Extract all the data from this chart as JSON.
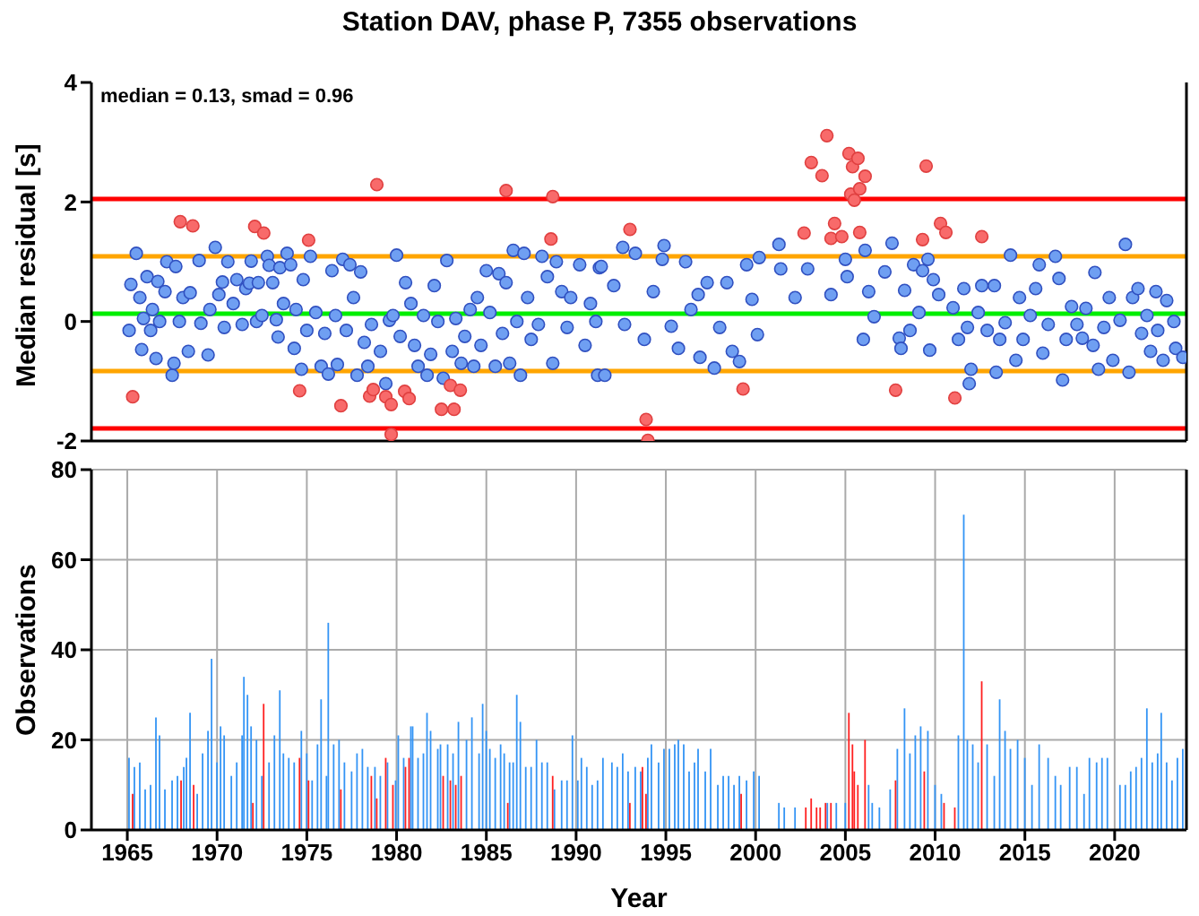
{
  "chart_data": [
    {
      "type": "scatter",
      "title": "Station DAV, phase P, 7355 observations",
      "ylabel": "Median residual [s]",
      "annotations": [
        "median = 0.13, smad = 0.96"
      ],
      "xlim": [
        1963,
        2024
      ],
      "xticks": [
        1965,
        1970,
        1975,
        1980,
        1985,
        1990,
        1995,
        2000,
        2005,
        2010,
        2015,
        2020
      ],
      "ylim": [
        -2,
        4
      ],
      "yticks": [
        -2,
        0,
        2,
        4
      ],
      "tick_labels": "y",
      "grid": "x",
      "marker": "circle",
      "ref_lines": [
        {
          "axis": "y",
          "value": 2.05,
          "color": "#ff0000"
        },
        {
          "axis": "y",
          "value": 1.09,
          "color": "#ffa500"
        },
        {
          "axis": "y",
          "value": 0.13,
          "color": "#00ee00"
        },
        {
          "axis": "y",
          "value": -0.83,
          "color": "#ffa500"
        },
        {
          "axis": "y",
          "value": -1.79,
          "color": "#ff0000"
        }
      ],
      "series": [
        {
          "color": "#6f9ff2",
          "x": [
            1965.1,
            1965.2,
            1965.5,
            1965.7,
            1965.8,
            1965.9,
            1966.1,
            1966.3,
            1966.4,
            1966.6,
            1966.7,
            1966.8,
            1967.1,
            1967.2,
            1967.5,
            1967.6,
            1967.7,
            1967.9,
            1968.1,
            1968.4,
            1968.5,
            1969.0,
            1969.1,
            1969.5,
            1969.6,
            1969.9,
            1970.1,
            1970.3,
            1970.4,
            1970.6,
            1970.9,
            1971.1,
            1971.4,
            1971.6,
            1971.8,
            1971.9,
            1972.2,
            1972.3,
            1972.5,
            1972.8,
            1972.9,
            1973.1,
            1973.3,
            1973.4,
            1973.5,
            1973.7,
            1973.9,
            1974.1,
            1974.3,
            1974.4,
            1974.7,
            1974.8,
            1975.0,
            1975.2,
            1975.5,
            1975.8,
            1976.0,
            1976.2,
            1976.4,
            1976.6,
            1976.7,
            1977.0,
            1977.2,
            1977.4,
            1977.6,
            1977.8,
            1978.0,
            1978.2,
            1978.4,
            1978.6,
            1979.1,
            1979.4,
            1979.6,
            1979.8,
            1980.0,
            1980.2,
            1980.5,
            1980.8,
            1981.0,
            1981.2,
            1981.5,
            1981.7,
            1981.9,
            1982.1,
            1982.3,
            1982.6,
            1982.8,
            1983.1,
            1983.3,
            1983.6,
            1983.8,
            1984.1,
            1984.3,
            1984.5,
            1984.7,
            1985.0,
            1985.2,
            1985.5,
            1985.7,
            1985.9,
            1986.1,
            1986.3,
            1986.5,
            1986.7,
            1986.9,
            1987.1,
            1987.3,
            1987.5,
            1987.9,
            1988.1,
            1988.4,
            1988.7,
            1988.9,
            1989.2,
            1989.5,
            1989.7,
            1990.2,
            1990.5,
            1990.8,
            1991.1,
            1991.2,
            1991.3,
            1991.4,
            1991.6,
            1992.1,
            1992.6,
            1992.7,
            1993.3,
            1993.8,
            1994.3,
            1994.8,
            1994.9,
            1995.3,
            1995.7,
            1996.1,
            1996.4,
            1996.8,
            1996.9,
            1997.3,
            1997.7,
            1998.0,
            1998.4,
            1998.7,
            1999.1,
            1999.5,
            1999.8,
            2000.1,
            2000.2,
            2001.3,
            2001.4,
            2002.2,
            2002.9,
            2004.2,
            2005.0,
            2005.1,
            2006.0,
            2006.1,
            2006.3,
            2006.6,
            2007.2,
            2007.6,
            2008.0,
            2008.1,
            2008.3,
            2008.6,
            2008.8,
            2009.1,
            2009.3,
            2009.6,
            2009.7,
            2009.9,
            2010.2,
            2011.0,
            2011.3,
            2011.6,
            2011.8,
            2011.9,
            2012.0,
            2012.4,
            2012.6,
            2012.9,
            2013.3,
            2013.4,
            2013.6,
            2013.9,
            2014.2,
            2014.5,
            2014.7,
            2014.9,
            2015.3,
            2015.6,
            2015.8,
            2016.0,
            2016.3,
            2016.7,
            2016.9,
            2017.1,
            2017.3,
            2017.6,
            2017.9,
            2018.2,
            2018.4,
            2018.8,
            2018.9,
            2019.1,
            2019.4,
            2019.7,
            2019.9,
            2020.3,
            2020.6,
            2020.8,
            2021.0,
            2021.3,
            2021.5,
            2021.8,
            2022.0,
            2022.3,
            2022.4,
            2022.7,
            2022.9,
            2023.3,
            2023.4,
            2023.8
          ],
          "values": [
            -0.15,
            0.62,
            1.14,
            0.4,
            -0.47,
            0.05,
            0.75,
            -0.15,
            0.2,
            -0.62,
            0.67,
            0.0,
            0.5,
            1.0,
            -0.9,
            -0.7,
            0.92,
            0.0,
            0.4,
            -0.5,
            0.48,
            1.02,
            -0.03,
            -0.56,
            0.2,
            1.24,
            0.45,
            0.66,
            -0.1,
            1.0,
            0.3,
            0.7,
            -0.05,
            0.55,
            0.64,
            1.01,
            0.0,
            0.65,
            0.1,
            1.09,
            0.94,
            0.65,
            0.03,
            -0.26,
            0.9,
            0.3,
            1.14,
            0.95,
            -0.45,
            0.2,
            -0.8,
            0.7,
            -0.15,
            1.09,
            0.15,
            -0.75,
            -0.2,
            -0.88,
            0.85,
            0.1,
            -0.72,
            1.04,
            -0.15,
            0.95,
            0.4,
            -0.9,
            0.83,
            -0.35,
            -0.75,
            -0.05,
            -0.5,
            -1.04,
            0.02,
            0.1,
            1.11,
            -0.25,
            0.65,
            0.3,
            -0.4,
            -0.75,
            0.1,
            -0.9,
            -0.55,
            0.6,
            0.0,
            -0.95,
            1.02,
            -0.5,
            0.05,
            -0.7,
            -0.25,
            0.2,
            -0.75,
            0.4,
            -0.4,
            0.85,
            0.15,
            -0.75,
            0.8,
            -0.2,
            0.65,
            -0.7,
            1.19,
            0.0,
            -0.9,
            1.14,
            0.4,
            -0.3,
            -0.05,
            1.09,
            0.75,
            -0.7,
            1.0,
            0.5,
            -0.1,
            0.4,
            0.95,
            -0.4,
            0.3,
            0.0,
            -0.9,
            0.9,
            0.92,
            -0.9,
            0.6,
            1.24,
            -0.05,
            1.14,
            -0.3,
            0.5,
            1.04,
            1.27,
            -0.08,
            -0.45,
            1.0,
            0.2,
            0.45,
            -0.6,
            0.65,
            -0.78,
            -0.1,
            0.65,
            -0.5,
            -0.67,
            0.95,
            0.37,
            -0.22,
            1.07,
            1.29,
            0.88,
            0.4,
            0.88,
            0.45,
            1.04,
            0.75,
            -0.3,
            1.19,
            0.5,
            0.08,
            0.83,
            1.31,
            -0.28,
            -0.45,
            0.52,
            -0.15,
            0.95,
            0.15,
            0.85,
            1.04,
            -0.48,
            0.7,
            0.45,
            0.23,
            -0.3,
            0.55,
            -0.1,
            -1.04,
            -0.8,
            0.15,
            0.6,
            -0.15,
            0.6,
            -0.85,
            -0.3,
            -0.02,
            1.11,
            -0.65,
            0.4,
            -0.3,
            0.1,
            0.55,
            0.95,
            -0.53,
            -0.05,
            1.09,
            0.72,
            -0.98,
            -0.3,
            0.25,
            -0.05,
            -0.28,
            0.22,
            -0.4,
            0.82,
            -0.8,
            -0.1,
            0.4,
            -0.65,
            0.02,
            1.29,
            -0.85,
            0.4,
            0.55,
            -0.2,
            0.1,
            -0.5,
            0.5,
            -0.15,
            -0.65,
            0.35,
            0.0,
            -0.45,
            -0.6
          ]
        },
        {
          "color": "#f86a6a",
          "x": [
            1965.3,
            1967.95,
            1968.65,
            1972.1,
            1972.6,
            1974.6,
            1975.1,
            1976.9,
            1978.5,
            1978.7,
            1978.9,
            1979.4,
            1979.7,
            1979.7,
            1980.45,
            1980.7,
            1982.5,
            1983.0,
            1983.2,
            1983.55,
            1986.1,
            1988.6,
            1988.7,
            1993.0,
            1993.9,
            1994.0,
            1999.3,
            2002.7,
            2003.1,
            2003.7,
            2003.97,
            2004.2,
            2004.4,
            2004.8,
            2005.2,
            2005.3,
            2005.4,
            2005.5,
            2005.7,
            2005.8,
            2005.8,
            2006.1,
            2007.8,
            2009.3,
            2009.5,
            2010.3,
            2010.6,
            2011.1,
            2012.6
          ],
          "values": [
            -1.26,
            1.67,
            1.6,
            1.59,
            1.48,
            -1.16,
            1.36,
            -1.41,
            -1.25,
            -1.14,
            2.29,
            -1.26,
            -1.39,
            -1.89,
            -1.17,
            -1.29,
            -1.47,
            -1.07,
            -1.47,
            -1.15,
            2.19,
            1.38,
            2.09,
            1.54,
            -1.64,
            -1.99,
            -1.13,
            1.48,
            2.66,
            2.44,
            3.11,
            1.39,
            1.64,
            1.42,
            2.81,
            2.13,
            2.59,
            2.03,
            2.73,
            2.22,
            1.49,
            2.43,
            -1.15,
            1.37,
            2.6,
            1.64,
            1.49,
            -1.28,
            1.42
          ]
        }
      ]
    },
    {
      "type": "bar",
      "xlabel": "Year",
      "ylabel": "Observations",
      "xlim": [
        1963,
        2024
      ],
      "xticks": [
        1965,
        1970,
        1975,
        1980,
        1985,
        1990,
        1995,
        2000,
        2005,
        2010,
        2015,
        2020
      ],
      "ylim": [
        0,
        80
      ],
      "yticks": [
        0,
        20,
        40,
        60,
        80
      ],
      "grid": true,
      "series": [
        {
          "color": "#3394f5",
          "x": [
            1965.1,
            1965.4,
            1965.7,
            1966.0,
            1966.3,
            1966.6,
            1966.8,
            1967.1,
            1967.5,
            1967.8,
            1968.15,
            1968.3,
            1968.5,
            1968.9,
            1969.2,
            1969.5,
            1969.7,
            1970.0,
            1970.2,
            1970.4,
            1970.8,
            1971.1,
            1971.4,
            1971.5,
            1971.7,
            1971.9,
            1972.2,
            1972.5,
            1972.9,
            1973.2,
            1973.5,
            1973.7,
            1974.0,
            1974.3,
            1974.7,
            1975.0,
            1975.3,
            1975.6,
            1975.8,
            1976.1,
            1976.2,
            1976.5,
            1976.8,
            1977.1,
            1977.5,
            1977.8,
            1978.1,
            1978.4,
            1978.8,
            1979.1,
            1979.5,
            1979.95,
            1980.1,
            1980.4,
            1980.8,
            1980.9,
            1981.2,
            1981.5,
            1981.7,
            1981.9,
            1982.3,
            1982.45,
            1982.85,
            1983.15,
            1983.45,
            1983.9,
            1984.2,
            1984.6,
            1984.8,
            1985.0,
            1985.2,
            1985.5,
            1985.8,
            1986.0,
            1986.3,
            1986.5,
            1986.7,
            1986.9,
            1987.2,
            1987.5,
            1987.8,
            1988.1,
            1988.4,
            1988.8,
            1989.2,
            1989.5,
            1989.8,
            1990.1,
            1990.3,
            1990.6,
            1990.9,
            1991.2,
            1991.5,
            1992.0,
            1992.3,
            1992.6,
            1992.9,
            1993.3,
            1993.6,
            1994.0,
            1994.2,
            1994.6,
            1994.9,
            1995.2,
            1995.5,
            1995.7,
            1996.0,
            1996.3,
            1996.6,
            1996.8,
            1997.2,
            1997.5,
            1997.9,
            1998.2,
            1998.5,
            1998.8,
            1999.1,
            1999.5,
            1999.9,
            2000.2,
            2001.3,
            2001.6,
            2002.2,
            2004.0,
            2004.5,
            2005.0,
            2006.3,
            2006.5,
            2006.9,
            2007.5,
            2007.9,
            2008.3,
            2008.6,
            2008.9,
            2009.2,
            2009.6,
            2010.0,
            2010.35,
            2011.3,
            2011.6,
            2011.8,
            2012.1,
            2012.4,
            2012.9,
            2013.3,
            2013.6,
            2013.9,
            2014.2,
            2014.6,
            2015.0,
            2015.4,
            2015.8,
            2016.3,
            2016.7,
            2017.0,
            2017.5,
            2017.9,
            2018.3,
            2018.6,
            2019.0,
            2019.3,
            2019.6,
            2020.3,
            2020.6,
            2020.9,
            2021.2,
            2021.5,
            2021.8,
            2022.1,
            2022.4,
            2022.6,
            2022.9,
            2023.2,
            2023.5,
            2023.8
          ],
          "values": [
            16,
            14,
            15,
            9,
            10,
            25,
            21,
            9,
            11,
            12,
            14,
            16,
            26,
            8,
            17,
            22,
            38,
            15,
            23,
            21,
            12,
            15,
            21,
            34,
            30,
            23,
            20,
            12,
            15,
            21,
            31,
            17,
            16,
            15,
            22,
            17,
            11,
            19,
            29,
            12,
            46,
            19,
            20,
            15,
            13,
            17,
            18,
            14,
            14,
            12,
            15,
            11,
            21,
            16,
            23,
            23,
            16,
            17,
            26,
            22,
            18,
            19,
            19,
            17,
            24,
            20,
            25,
            17,
            28,
            22,
            18,
            16,
            19,
            17,
            15,
            15,
            30,
            24,
            14,
            14,
            20,
            15,
            15,
            9,
            11,
            11,
            21,
            11,
            16,
            14,
            10,
            11,
            16,
            15,
            14,
            17,
            13,
            14,
            13,
            16,
            19,
            15,
            18,
            18,
            19,
            20,
            19,
            13,
            15,
            18,
            13,
            18,
            10,
            12,
            12,
            10,
            12,
            11,
            13,
            12,
            6,
            5,
            5,
            6,
            6,
            6,
            10,
            6,
            5,
            9,
            18,
            27,
            17,
            21,
            23,
            22,
            10,
            8,
            21,
            70,
            20,
            19,
            15,
            19,
            12,
            29,
            22,
            18,
            20,
            16,
            10,
            19,
            16,
            12,
            10,
            14,
            14,
            8,
            16,
            15,
            16,
            16,
            10,
            10,
            13,
            14,
            16,
            27,
            15,
            17,
            26,
            15,
            11,
            16,
            18
          ]
        },
        {
          "color": "#ff2020",
          "x": [
            1965.3,
            1968.0,
            1968.7,
            1972.0,
            1972.6,
            1974.6,
            1975.1,
            1976.9,
            1978.6,
            1978.9,
            1979.4,
            1979.8,
            1980.5,
            1980.7,
            1982.6,
            1983.0,
            1983.3,
            1983.6,
            1986.2,
            1988.7,
            1993.0,
            1993.7,
            1993.9,
            1999.2,
            2002.8,
            2003.1,
            2003.4,
            2003.6,
            2003.9,
            2004.2,
            2005.2,
            2005.4,
            2005.5,
            2005.7,
            2006.1,
            2007.8,
            2009.4,
            2010.5,
            2011.1,
            2012.6
          ],
          "values": [
            8,
            11,
            10,
            6,
            28,
            16,
            11,
            9,
            12,
            7,
            16,
            10,
            14,
            16,
            12,
            11,
            10,
            12,
            6,
            12,
            6,
            14,
            8,
            8,
            5,
            7,
            5,
            5,
            6,
            6,
            26,
            19,
            13,
            10,
            20,
            11,
            13,
            6,
            5,
            33
          ]
        }
      ]
    }
  ]
}
